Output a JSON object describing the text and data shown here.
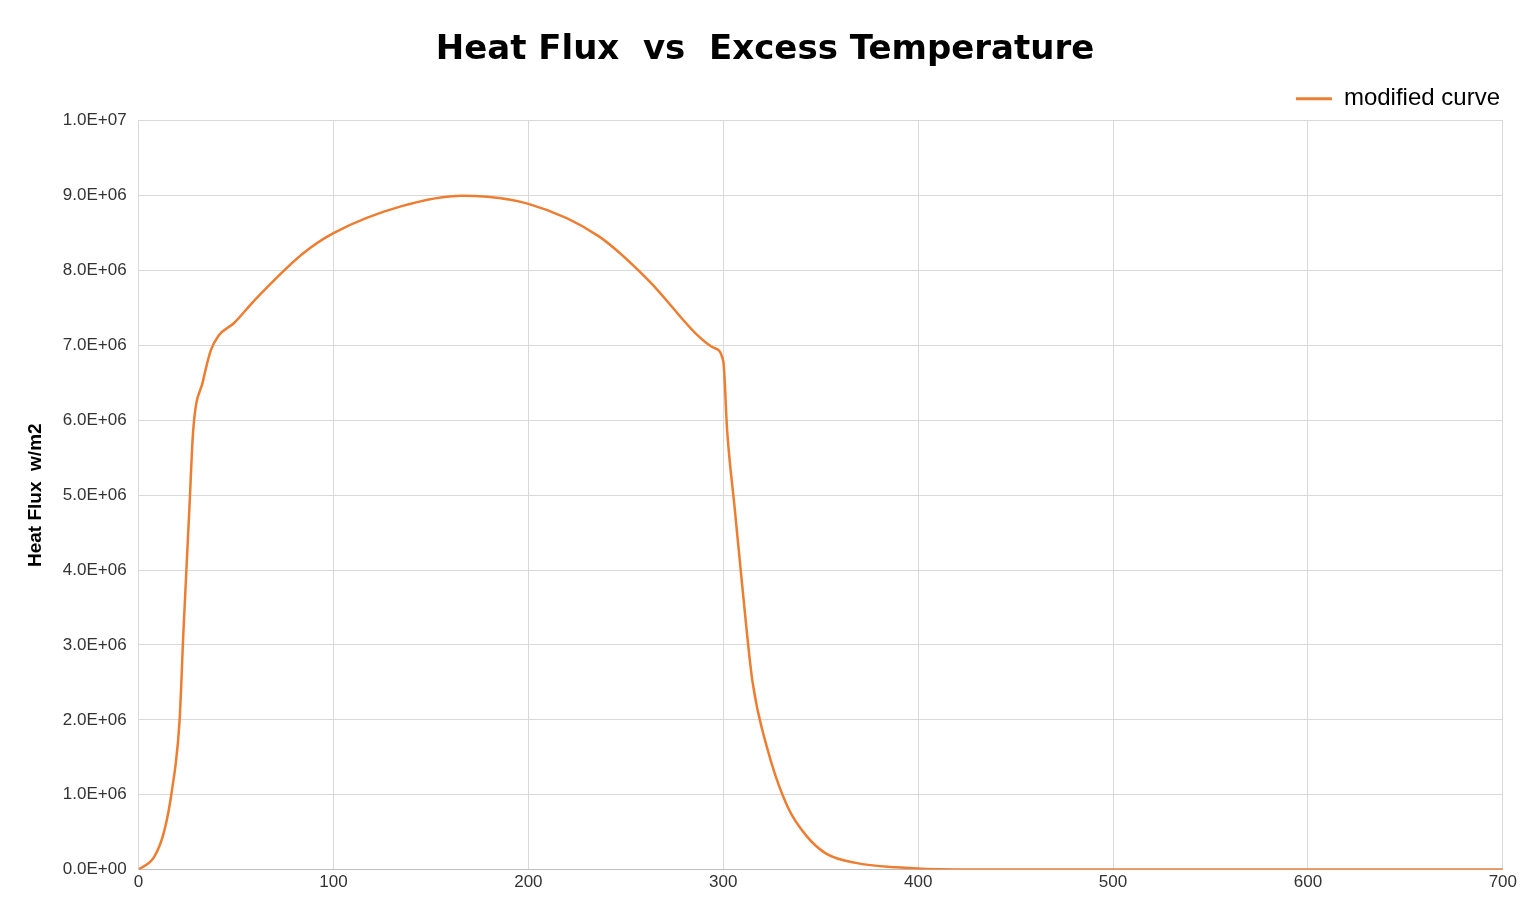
{
  "chart_data": {
    "type": "line",
    "title": "Heat Flux  vs  Excess Temperature",
    "ylabel": "Heat Flux  w/m2",
    "xlim": [
      0,
      700
    ],
    "xticks": [
      0,
      100,
      200,
      300,
      400,
      500,
      600,
      700
    ],
    "ylim": [
      0,
      10000000
    ],
    "yticks": [
      {
        "value": 0,
        "label": "0.0E+00"
      },
      {
        "value": 1000000,
        "label": "1.0E+06"
      },
      {
        "value": 2000000,
        "label": "2.0E+06"
      },
      {
        "value": 3000000,
        "label": "3.0E+06"
      },
      {
        "value": 4000000,
        "label": "4.0E+06"
      },
      {
        "value": 5000000,
        "label": "5.0E+06"
      },
      {
        "value": 6000000,
        "label": "6.0E+06"
      },
      {
        "value": 7000000,
        "label": "7.0E+06"
      },
      {
        "value": 8000000,
        "label": "8.0E+06"
      },
      {
        "value": 9000000,
        "label": "9.0E+06"
      },
      {
        "value": 10000000,
        "label": "1.0E+07"
      }
    ],
    "grid": true,
    "legend": "top right",
    "marker": "none",
    "line_style": "solid",
    "series": [
      {
        "name": "modified curve",
        "color": "#ed7d31",
        "x": [
          0,
          8,
          13,
          17,
          21,
          23,
          26,
          28,
          33,
          37,
          41,
          49,
          59,
          84,
          100,
          135,
          166,
          200,
          236,
          262,
          287,
          295,
          300,
          302,
          306,
          310,
          315,
          323,
          333,
          343,
          353,
          368,
          389,
          419,
          500,
          600,
          700
        ],
        "values": [
          0,
          170000,
          500000,
          1040000,
          1980000,
          3180000,
          4790000,
          5860000,
          6520000,
          6930000,
          7130000,
          7300000,
          7590000,
          8220000,
          8500000,
          8860000,
          9000000,
          8890000,
          8460000,
          7860000,
          7130000,
          6970000,
          6790000,
          5860000,
          4790000,
          3720000,
          2510000,
          1580000,
          840000,
          440000,
          210000,
          90000,
          30000,
          0,
          0,
          0,
          0
        ]
      }
    ]
  }
}
